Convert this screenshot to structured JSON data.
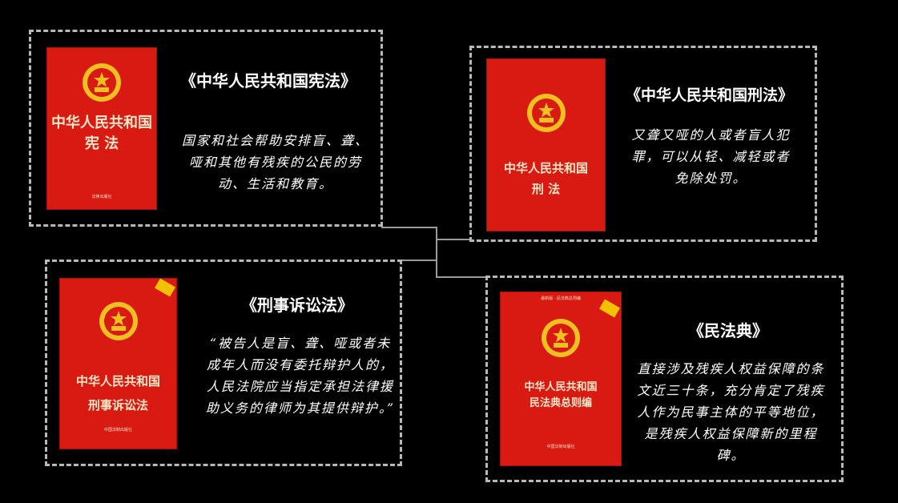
{
  "colors": {
    "background": "#000000",
    "book_red": "#d91a12",
    "dash": "#b8b8b8"
  },
  "panels": [
    {
      "id": "constitution",
      "title": "《中华人民共和国宪法》",
      "body": "国家和社会帮助安排盲、聋、哑和其他有残疾的公民的劳动、生活和教育。",
      "book_title_line1": "中华人民共和国",
      "book_title_line2": "宪 法",
      "book_publisher": "法律出版社"
    },
    {
      "id": "criminal-law",
      "title": "《中华人民共和国刑法》",
      "body": "又聋又哑的人或者盲人犯罪，可以从轻、减轻或者免除处罚。",
      "book_title_line1": "中华人民共和国",
      "book_title_line2": "刑 法"
    },
    {
      "id": "criminal-procedure-law",
      "title": "《刑事诉讼法》",
      "body": "“被告人是盲、聋、哑或者未成年人而没有委托辩护人的，人民法院应当指定承担法律援助义务的律师为其提供辩护。”",
      "book_title_line1": "中华人民共和国",
      "book_title_line2": "刑事诉讼法",
      "book_publisher": "中国法制出版社"
    },
    {
      "id": "civil-code",
      "title": "《民法典》",
      "body": "直接涉及残疾人权益保障的条文近三十条，充分肯定了残疾人作为民事主体的平等地位，是残疾人权益保障新的里程碑。",
      "book_title_line1": "中华人民共和国",
      "book_title_line2": "民法典总则编",
      "book_banner": "最新版 · 民法典总则编",
      "book_publisher": "中国法制出版社"
    }
  ]
}
